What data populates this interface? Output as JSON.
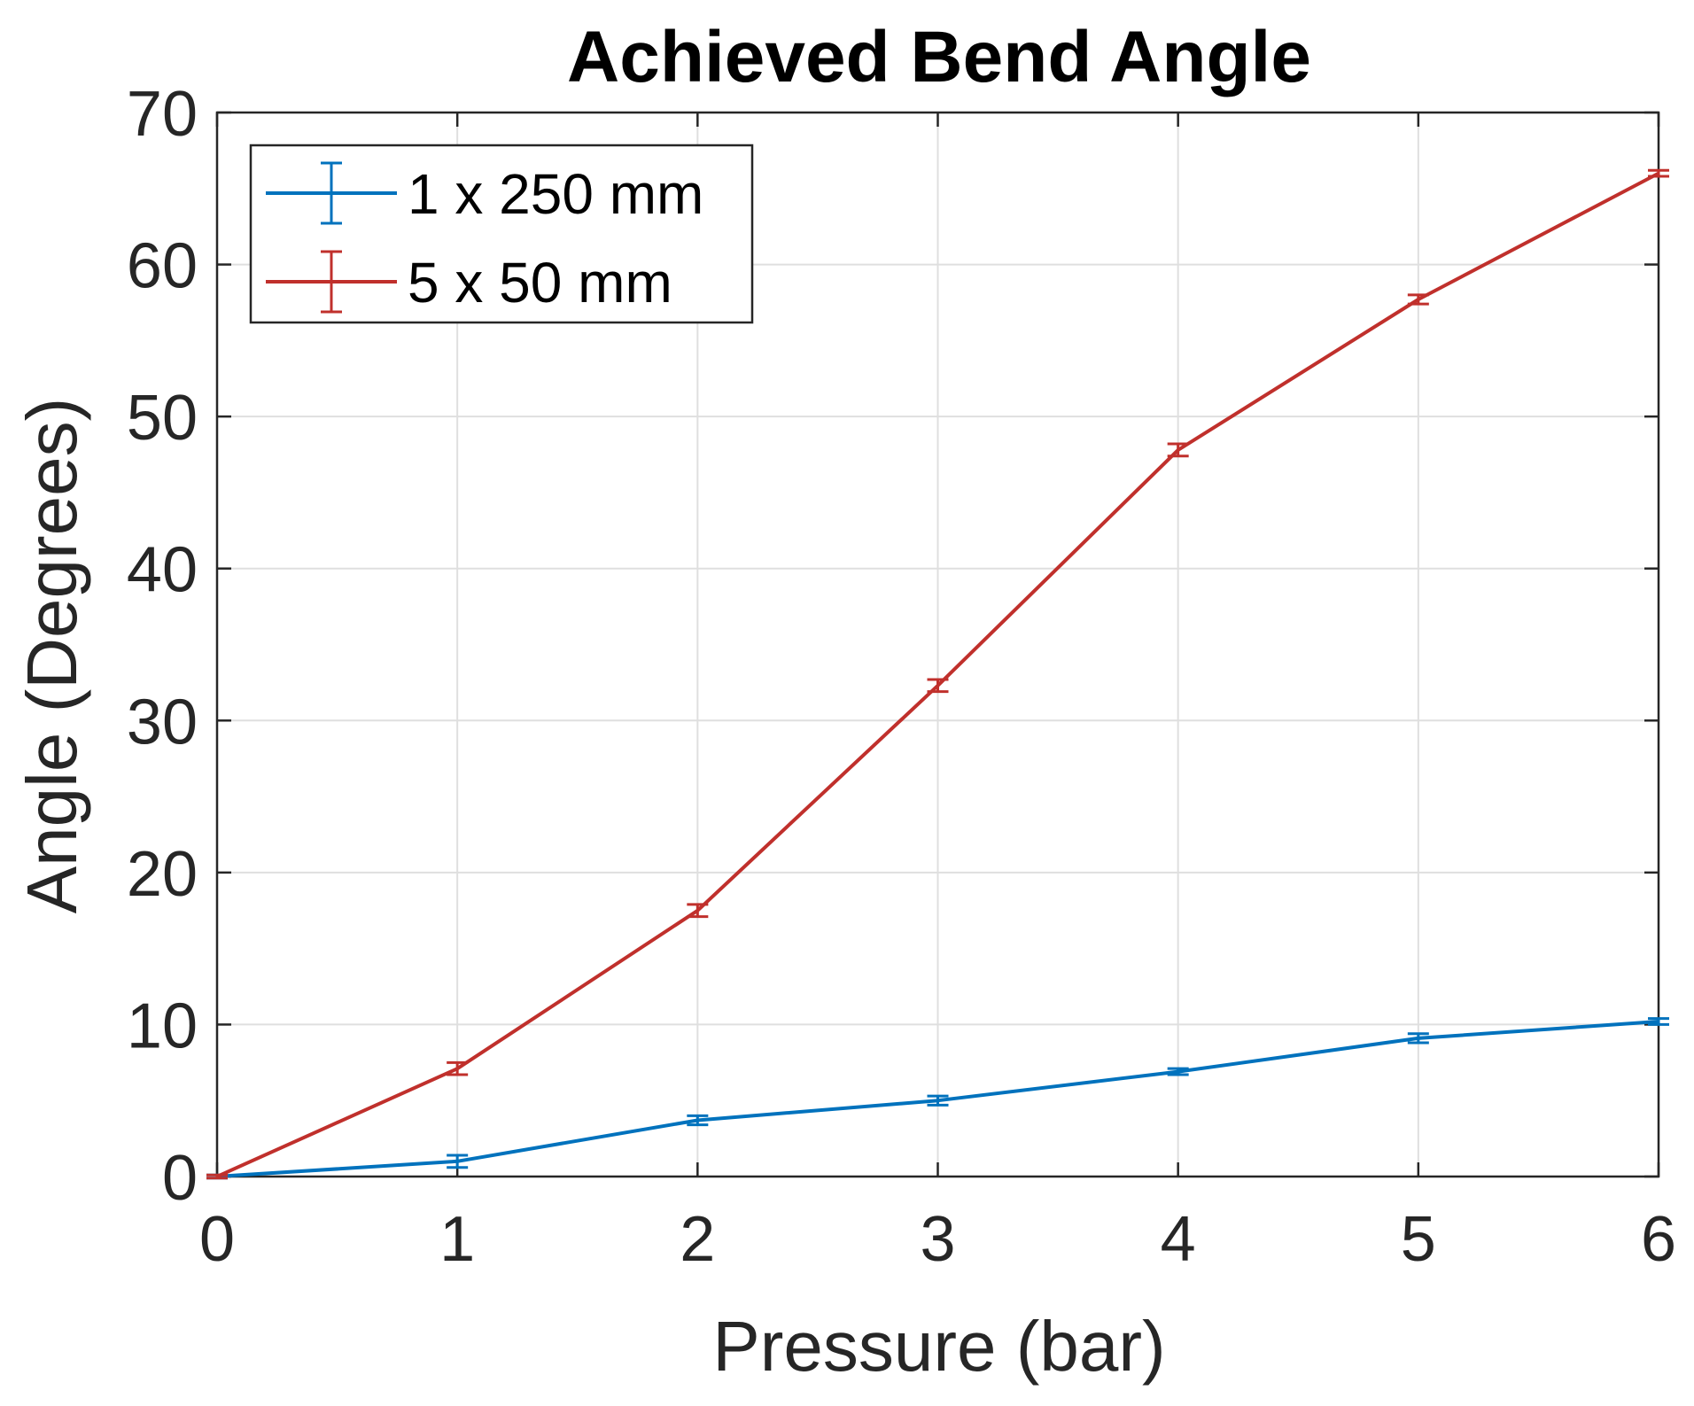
{
  "chart_data": {
    "type": "line",
    "title": "Achieved Bend Angle",
    "xlabel": "Pressure (bar)",
    "ylabel": "Angle (Degrees)",
    "xlim": [
      0,
      6
    ],
    "ylim": [
      0,
      70
    ],
    "xticks": [
      "0",
      "1",
      "2",
      "3",
      "4",
      "5",
      "6"
    ],
    "yticks": [
      "0",
      "10",
      "20",
      "30",
      "40",
      "50",
      "60",
      "70"
    ],
    "grid": true,
    "legend_position": "top-left",
    "x": [
      0,
      1,
      2,
      3,
      4,
      5,
      6
    ],
    "series": [
      {
        "name": "1 x 250 mm",
        "color": "#0072bd",
        "values": [
          0,
          1.0,
          3.7,
          5.0,
          6.9,
          9.1,
          10.2
        ],
        "errors": [
          0.1,
          0.4,
          0.3,
          0.3,
          0.2,
          0.3,
          0.2
        ]
      },
      {
        "name": "5 x 50 mm",
        "color": "#c0302c",
        "values": [
          0,
          7.1,
          17.5,
          32.3,
          47.8,
          57.7,
          66.0
        ],
        "errors": [
          0.1,
          0.4,
          0.4,
          0.4,
          0.4,
          0.3,
          0.2
        ]
      }
    ]
  }
}
